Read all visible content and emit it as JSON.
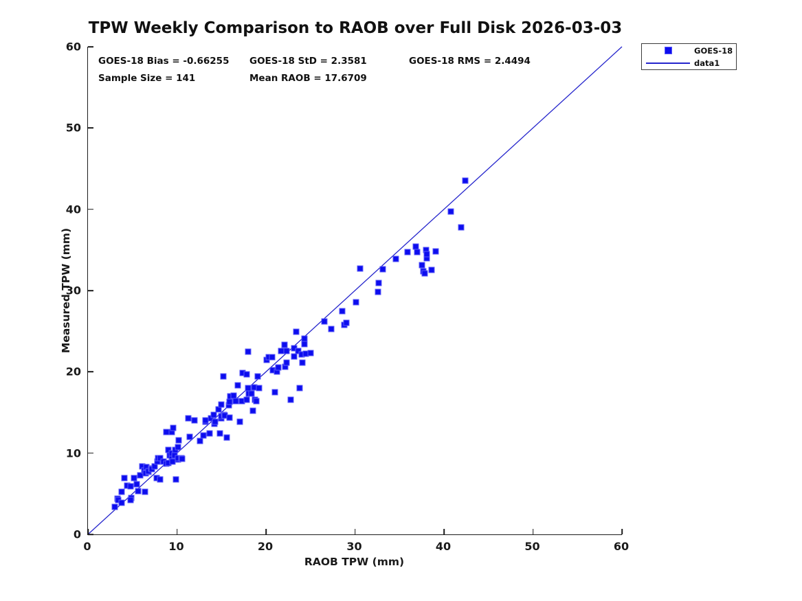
{
  "title": "TPW Weekly Comparison to RAOB over Full Disk 2026-03-03",
  "annotations": {
    "bias": "GOES-18 Bias = -0.66255",
    "std": "GOES-18 StD = 2.3581",
    "rms": "GOES-18 RMS = 2.4494",
    "sample_size": "Sample Size = 141",
    "mean_raob": "Mean RAOB = 17.6709"
  },
  "legend": {
    "items": [
      {
        "label": "GOES-18",
        "icon": "square-marker-icon"
      },
      {
        "label": "data1",
        "icon": "line-icon"
      }
    ]
  },
  "colors": {
    "marker_face": "#0d0dee",
    "marker_edge": "#5a5af8",
    "line": "#2424cc",
    "axis": "#1a1a1a",
    "text": "#111111"
  },
  "chart_data": {
    "type": "scatter",
    "title": "TPW Weekly Comparison to RAOB over Full Disk 2026-03-03",
    "xlabel": "RAOB TPW (mm)",
    "ylabel": "Measured TPW (mm)",
    "xlim": [
      0,
      60
    ],
    "ylim": [
      0,
      60
    ],
    "xticks": [
      0,
      10,
      20,
      30,
      40,
      50,
      60
    ],
    "yticks": [
      0,
      10,
      20,
      30,
      40,
      50,
      60
    ],
    "grid": false,
    "legend_position": "outside-top-right",
    "stats": {
      "bias": -0.66255,
      "std": 2.3581,
      "rms": 2.4494,
      "sample_size": 141,
      "mean_raob": 17.6709
    },
    "series": [
      {
        "name": "GOES-18",
        "type": "scatter",
        "marker": "square",
        "color": "#0d0dee",
        "points": [
          [
            3.0,
            3.4
          ],
          [
            3.3,
            4.4
          ],
          [
            3.4,
            4.2
          ],
          [
            3.8,
            3.9
          ],
          [
            3.8,
            5.2
          ],
          [
            4.1,
            6.9
          ],
          [
            4.4,
            6.0
          ],
          [
            4.8,
            5.9
          ],
          [
            4.9,
            4.5
          ],
          [
            4.8,
            4.2
          ],
          [
            5.2,
            6.9
          ],
          [
            5.5,
            6.2
          ],
          [
            5.6,
            5.3
          ],
          [
            5.9,
            7.3
          ],
          [
            6.1,
            8.4
          ],
          [
            6.3,
            7.9
          ],
          [
            6.4,
            5.2
          ],
          [
            6.5,
            7.5
          ],
          [
            6.6,
            8.3
          ],
          [
            6.8,
            7.7
          ],
          [
            6.8,
            7.8
          ],
          [
            7.1,
            8.1
          ],
          [
            7.2,
            8.0
          ],
          [
            7.5,
            8.4
          ],
          [
            7.7,
            6.9
          ],
          [
            7.8,
            9.0
          ],
          [
            7.9,
            9.4
          ],
          [
            8.1,
            6.8
          ],
          [
            8.1,
            9.4
          ],
          [
            8.5,
            9.0
          ],
          [
            8.8,
            8.7
          ],
          [
            8.8,
            12.6
          ],
          [
            9.0,
            8.8
          ],
          [
            9.0,
            10.4
          ],
          [
            9.2,
            9.7
          ],
          [
            9.4,
            9.5
          ],
          [
            9.4,
            10.0
          ],
          [
            9.4,
            12.6
          ],
          [
            9.5,
            9.0
          ],
          [
            9.6,
            13.1
          ],
          [
            9.7,
            9.7
          ],
          [
            9.8,
            10.4
          ],
          [
            9.9,
            6.8
          ],
          [
            10.1,
            9.2
          ],
          [
            10.1,
            9.4
          ],
          [
            10.1,
            10.7
          ],
          [
            10.2,
            11.6
          ],
          [
            10.5,
            9.4
          ],
          [
            10.6,
            9.3
          ],
          [
            11.3,
            14.3
          ],
          [
            11.4,
            12.0
          ],
          [
            12.0,
            14.0
          ],
          [
            12.6,
            11.5
          ],
          [
            13.0,
            12.2
          ],
          [
            13.2,
            13.9
          ],
          [
            13.2,
            14.0
          ],
          [
            13.7,
            12.4
          ],
          [
            13.8,
            14.3
          ],
          [
            14.1,
            14.7
          ],
          [
            14.2,
            13.6
          ],
          [
            14.3,
            13.9
          ],
          [
            14.7,
            15.4
          ],
          [
            14.8,
            12.4
          ],
          [
            15.0,
            14.3
          ],
          [
            15.0,
            14.5
          ],
          [
            15.0,
            16.0
          ],
          [
            15.2,
            19.4
          ],
          [
            15.3,
            14.7
          ],
          [
            15.4,
            14.6
          ],
          [
            15.6,
            11.9
          ],
          [
            15.8,
            15.9
          ],
          [
            15.9,
            14.4
          ],
          [
            15.9,
            16.3
          ],
          [
            16.0,
            17.0
          ],
          [
            16.4,
            17.1
          ],
          [
            16.6,
            16.4
          ],
          [
            16.8,
            18.3
          ],
          [
            17.1,
            13.9
          ],
          [
            17.3,
            16.4
          ],
          [
            17.4,
            19.9
          ],
          [
            17.8,
            16.6
          ],
          [
            17.8,
            19.7
          ],
          [
            18.0,
            18.0
          ],
          [
            18.0,
            22.5
          ],
          [
            18.1,
            17.3
          ],
          [
            18.4,
            17.3
          ],
          [
            18.5,
            15.2
          ],
          [
            18.7,
            18.1
          ],
          [
            18.8,
            16.6
          ],
          [
            18.9,
            16.4
          ],
          [
            19.1,
            19.4
          ],
          [
            19.2,
            18.0
          ],
          [
            20.1,
            21.5
          ],
          [
            20.3,
            21.8
          ],
          [
            20.7,
            21.8
          ],
          [
            20.8,
            20.2
          ],
          [
            21.0,
            17.5
          ],
          [
            21.2,
            20.0
          ],
          [
            21.4,
            20.5
          ],
          [
            21.7,
            22.6
          ],
          [
            22.1,
            23.3
          ],
          [
            22.2,
            20.6
          ],
          [
            22.3,
            21.1
          ],
          [
            22.3,
            22.6
          ],
          [
            22.8,
            16.6
          ],
          [
            23.2,
            21.9
          ],
          [
            23.2,
            22.9
          ],
          [
            23.4,
            24.9
          ],
          [
            23.6,
            22.6
          ],
          [
            23.8,
            18.0
          ],
          [
            24.0,
            22.1
          ],
          [
            24.1,
            21.1
          ],
          [
            24.3,
            23.4
          ],
          [
            24.3,
            24.1
          ],
          [
            24.5,
            22.2
          ],
          [
            25.0,
            22.3
          ],
          [
            26.6,
            26.2
          ],
          [
            27.3,
            25.3
          ],
          [
            28.6,
            27.5
          ],
          [
            28.8,
            25.8
          ],
          [
            29.0,
            26.0
          ],
          [
            30.1,
            28.6
          ],
          [
            30.6,
            32.7
          ],
          [
            32.6,
            29.8
          ],
          [
            32.7,
            30.9
          ],
          [
            33.1,
            32.6
          ],
          [
            34.6,
            33.9
          ],
          [
            35.9,
            34.7
          ],
          [
            36.8,
            35.4
          ],
          [
            37.0,
            34.7
          ],
          [
            37.5,
            33.1
          ],
          [
            37.7,
            32.4
          ],
          [
            37.8,
            32.1
          ],
          [
            38.0,
            35.0
          ],
          [
            38.1,
            34.0
          ],
          [
            38.1,
            34.5
          ],
          [
            38.6,
            32.5
          ],
          [
            39.1,
            34.8
          ],
          [
            40.8,
            39.7
          ],
          [
            41.9,
            37.8
          ],
          [
            42.4,
            43.5
          ]
        ]
      },
      {
        "name": "data1",
        "type": "line",
        "color": "#2424cc",
        "points": [
          [
            0,
            0
          ],
          [
            60,
            60
          ]
        ]
      }
    ]
  }
}
